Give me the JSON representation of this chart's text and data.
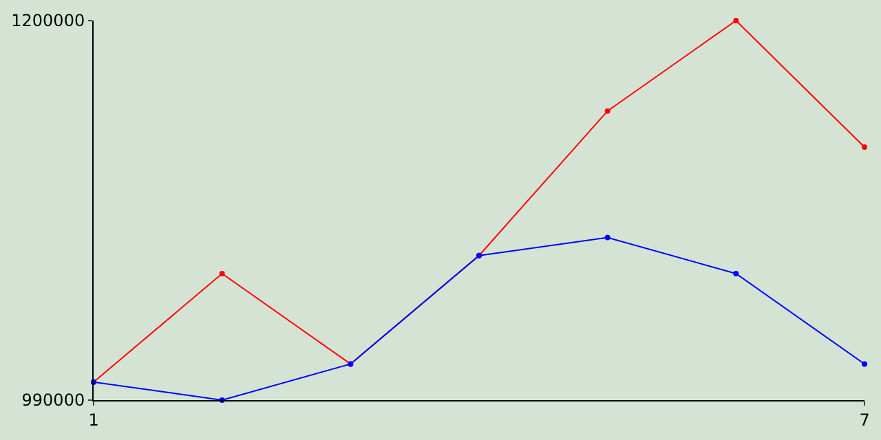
{
  "chart_data": {
    "type": "line",
    "x": [
      1,
      2,
      3,
      4,
      5,
      6,
      7
    ],
    "series": [
      {
        "color": "#ff0000",
        "values": [
          1000000,
          1060000,
          1010000,
          1070000,
          1150000,
          1200000,
          1130000
        ]
      },
      {
        "color": "#0000ff",
        "values": [
          1000000,
          990000,
          1010000,
          1070000,
          1080000,
          1060000,
          1010000
        ]
      }
    ],
    "xlim": [
      1,
      7
    ],
    "xticks": [
      1,
      7
    ],
    "ylim": [
      990000,
      1200000
    ],
    "yticks": [
      990000,
      1200000
    ],
    "marker": "circle",
    "line_style": "solid"
  }
}
